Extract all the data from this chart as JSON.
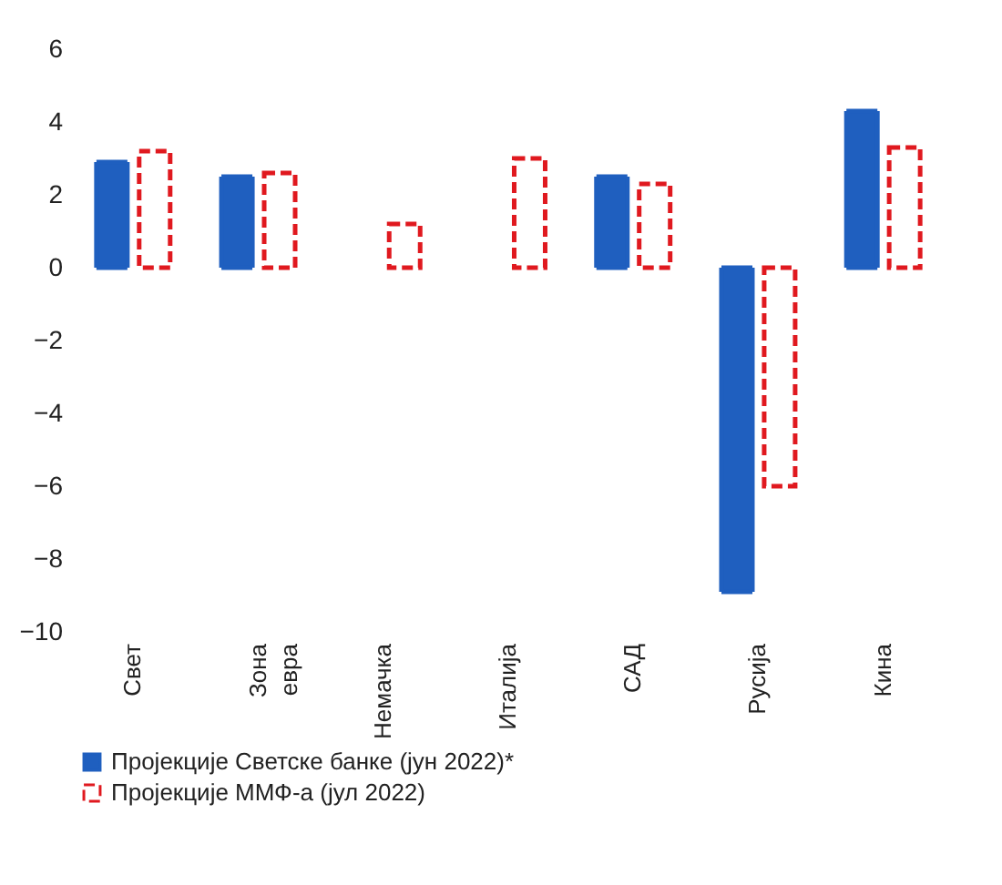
{
  "chart_data": {
    "type": "bar",
    "categories": [
      "Свет",
      "Зона евра",
      "Немачка",
      "Италија",
      "САД",
      "Русија",
      "Кина"
    ],
    "series": [
      {
        "name": "Пројекције Светске банке (јун 2022)*",
        "color": "#1f5fbf",
        "values": [
          2.9,
          2.5,
          null,
          null,
          2.5,
          -8.9,
          4.3
        ]
      },
      {
        "name": "Пројекције ММФ-а (јул 2022)",
        "color": "#e0191f",
        "line_style": "dashed",
        "values": [
          3.2,
          2.6,
          1.2,
          3.0,
          2.3,
          -6.0,
          3.3
        ]
      }
    ],
    "ylim": [
      -10,
      6
    ],
    "yticks": [
      -10,
      -8,
      -6,
      -4,
      -2,
      0,
      2,
      4,
      6
    ],
    "grid": false,
    "legend": "bottom"
  }
}
